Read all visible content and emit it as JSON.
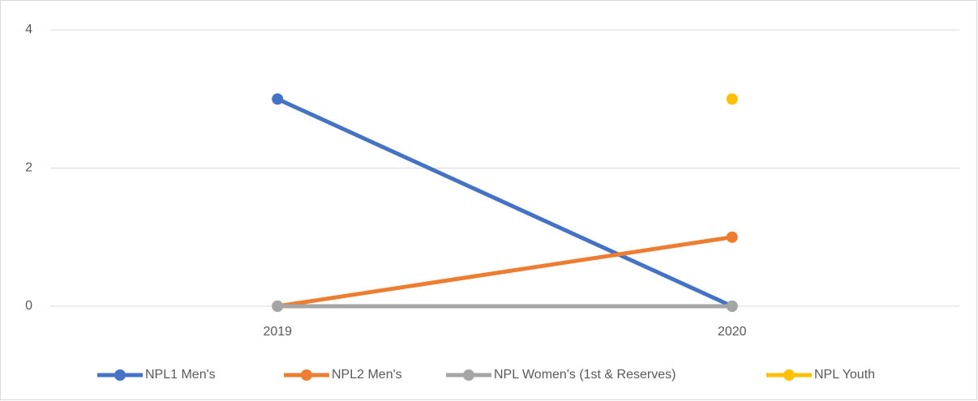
{
  "chart_data": {
    "type": "line",
    "categories": [
      "2019",
      "2020"
    ],
    "series": [
      {
        "name": "NPL1 Men's",
        "color": "#4472c4",
        "values": [
          3,
          0
        ]
      },
      {
        "name": "NPL2 Men's",
        "color": "#ed7d31",
        "values": [
          0,
          1
        ]
      },
      {
        "name": "NPL Women's (1st & Reserves)",
        "color": "#a5a5a5",
        "values": [
          0,
          0
        ]
      },
      {
        "name": "NPL Youth",
        "color": "#ffc000",
        "values": [
          null,
          3
        ]
      }
    ],
    "ylim": [
      0,
      4
    ],
    "yticks": [
      0,
      2,
      4
    ],
    "grid": true,
    "legend": "bottom"
  }
}
